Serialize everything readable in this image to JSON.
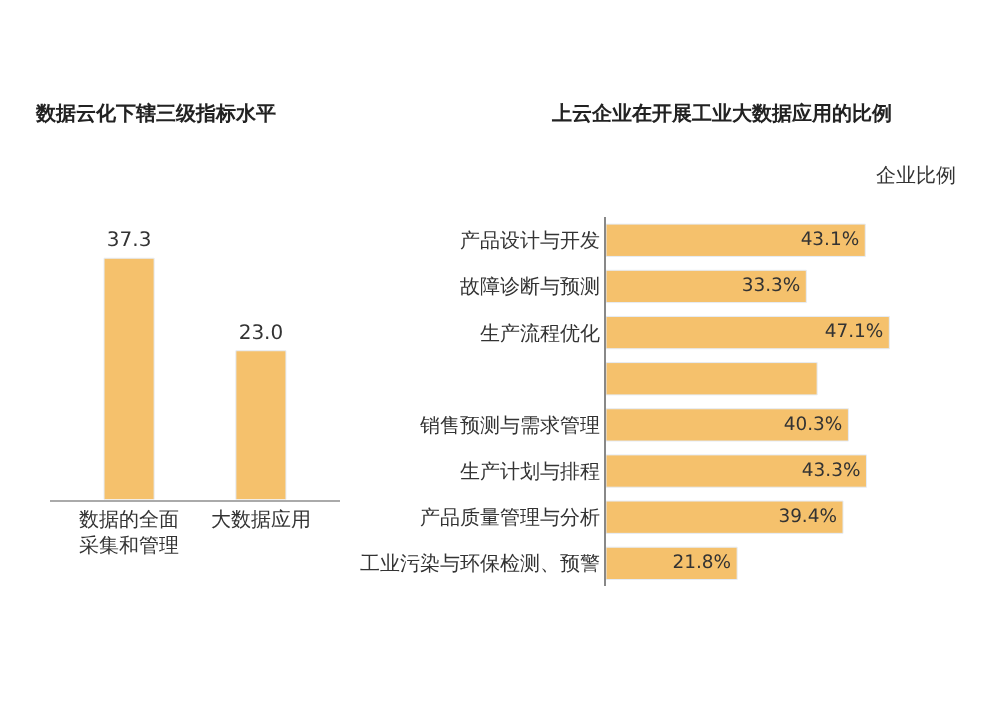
{
  "chart_data": [
    {
      "type": "bar",
      "title": "数据云化下辖三级指标水平",
      "categories": [
        "数据的全面采集和管理",
        "大数据应用"
      ],
      "values": [
        37.3,
        23.0
      ],
      "value_labels": [
        "37.3",
        "23.0"
      ],
      "color": "#f5c16c",
      "tick_labels": "x"
    },
    {
      "type": "bar",
      "orientation": "horizontal",
      "title": "上云企业在开展工业大数据应用的比例",
      "xlabel": "企业比例",
      "categories": [
        "产品设计与开发",
        "故障诊断与预测",
        "生产流程优化",
        null,
        "销售预测与需求管理",
        "生产计划与排程",
        "产品质量管理与分析",
        "工业污染与环保检测、预警"
      ],
      "values": [
        43.1,
        33.3,
        47.1,
        35.1,
        40.3,
        43.3,
        39.4,
        21.8
      ],
      "value_labels": [
        "43.1%",
        "33.3%",
        "47.1%",
        null,
        "40.3%",
        "43.3%",
        "39.4%",
        "21.8%"
      ],
      "color": "#f5c16c"
    }
  ]
}
